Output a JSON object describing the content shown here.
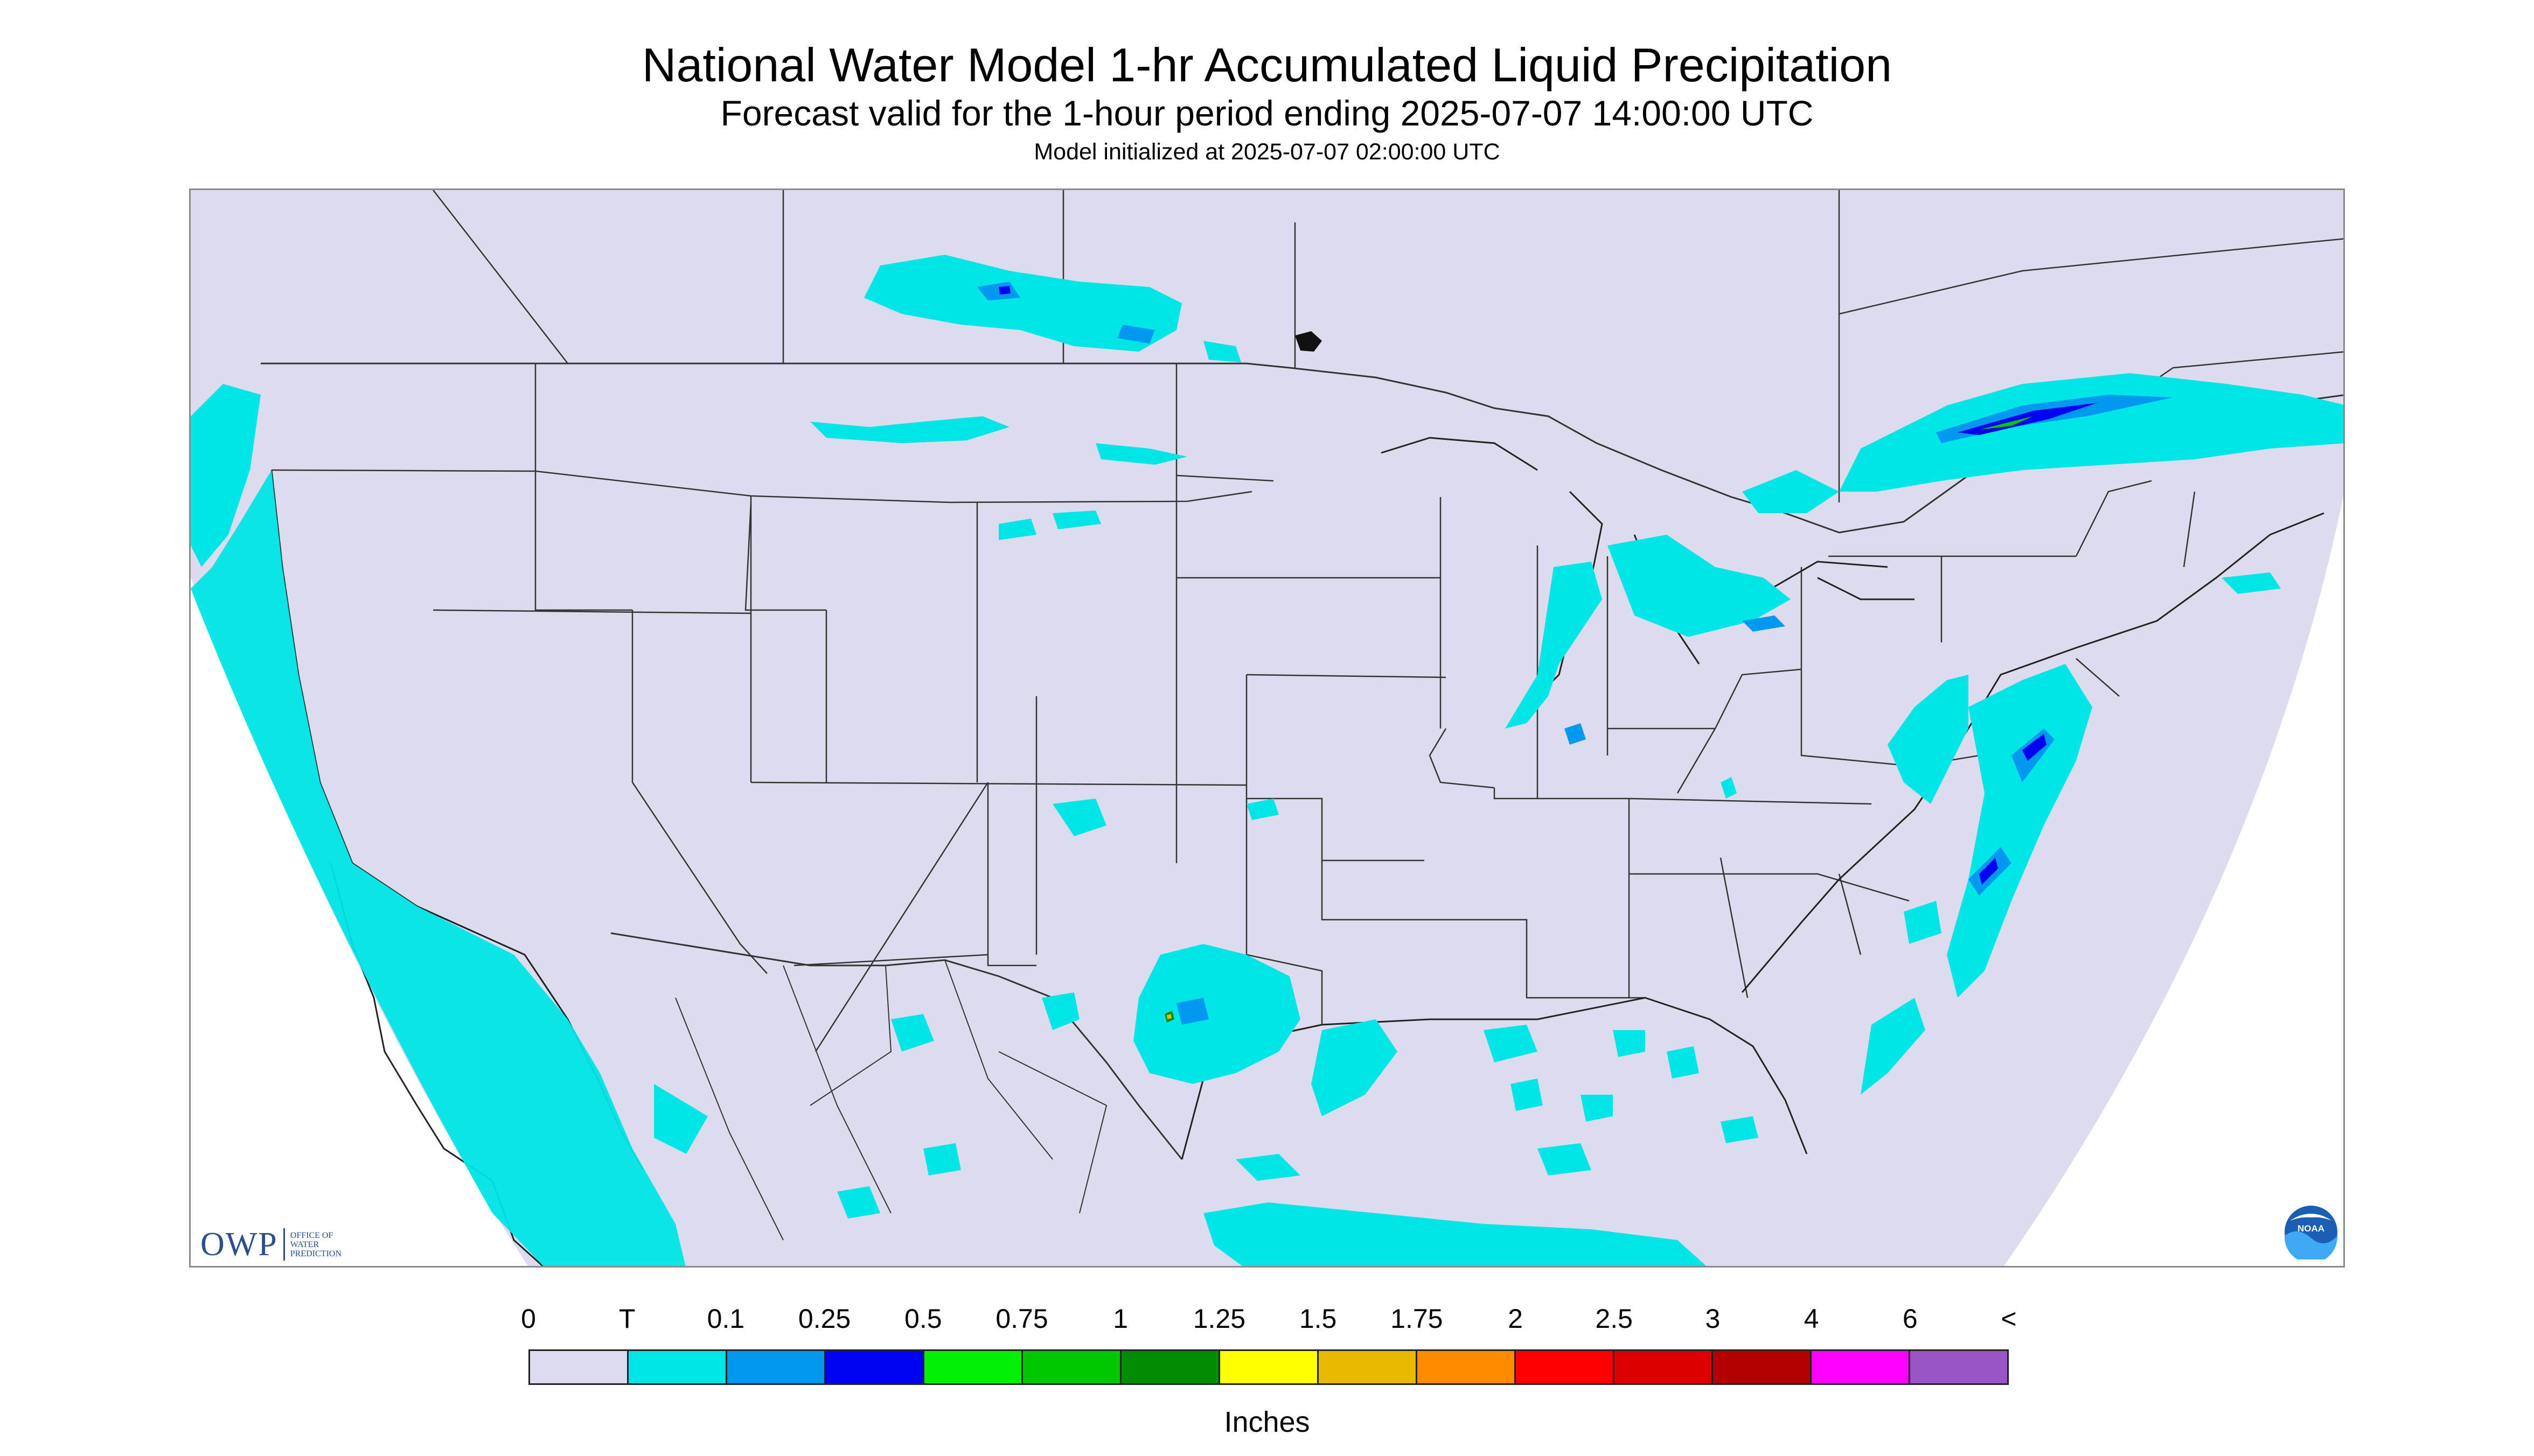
{
  "header": {
    "title": "National Water Model 1-hr Accumulated Liquid Precipitation",
    "subtitle": "Forecast valid for the 1-hour period ending 2025-07-07 14:00:00 UTC",
    "init_line": "Model initialized at 2025-07-07 02:00:00 UTC"
  },
  "map": {
    "region": "CONUS",
    "background_color": "#dcdcee",
    "outside_domain_color": "#ffffff",
    "boundary_color": "#333333",
    "dominant_precip_color": "#00e5e5"
  },
  "legend": {
    "labels": [
      "0",
      "T",
      "0.1",
      "0.25",
      "0.5",
      "0.75",
      "1",
      "1.25",
      "1.5",
      "1.75",
      "2",
      "2.5",
      "3",
      "4",
      "6",
      "<"
    ],
    "colors": [
      "#dcdcee",
      "#00e5e5",
      "#0099f0",
      "#0000f0",
      "#00f000",
      "#00c800",
      "#008c00",
      "#ffff00",
      "#e6b800",
      "#ff8c00",
      "#ff0000",
      "#dc0000",
      "#b40000",
      "#ff00ff",
      "#9955c8"
    ],
    "units": "Inches"
  },
  "logos": {
    "owp": {
      "letters": "OWP",
      "text_lines": [
        "OFFICE OF",
        "WATER",
        "PREDICTION"
      ]
    },
    "noaa": {
      "text": "NOAA"
    }
  }
}
